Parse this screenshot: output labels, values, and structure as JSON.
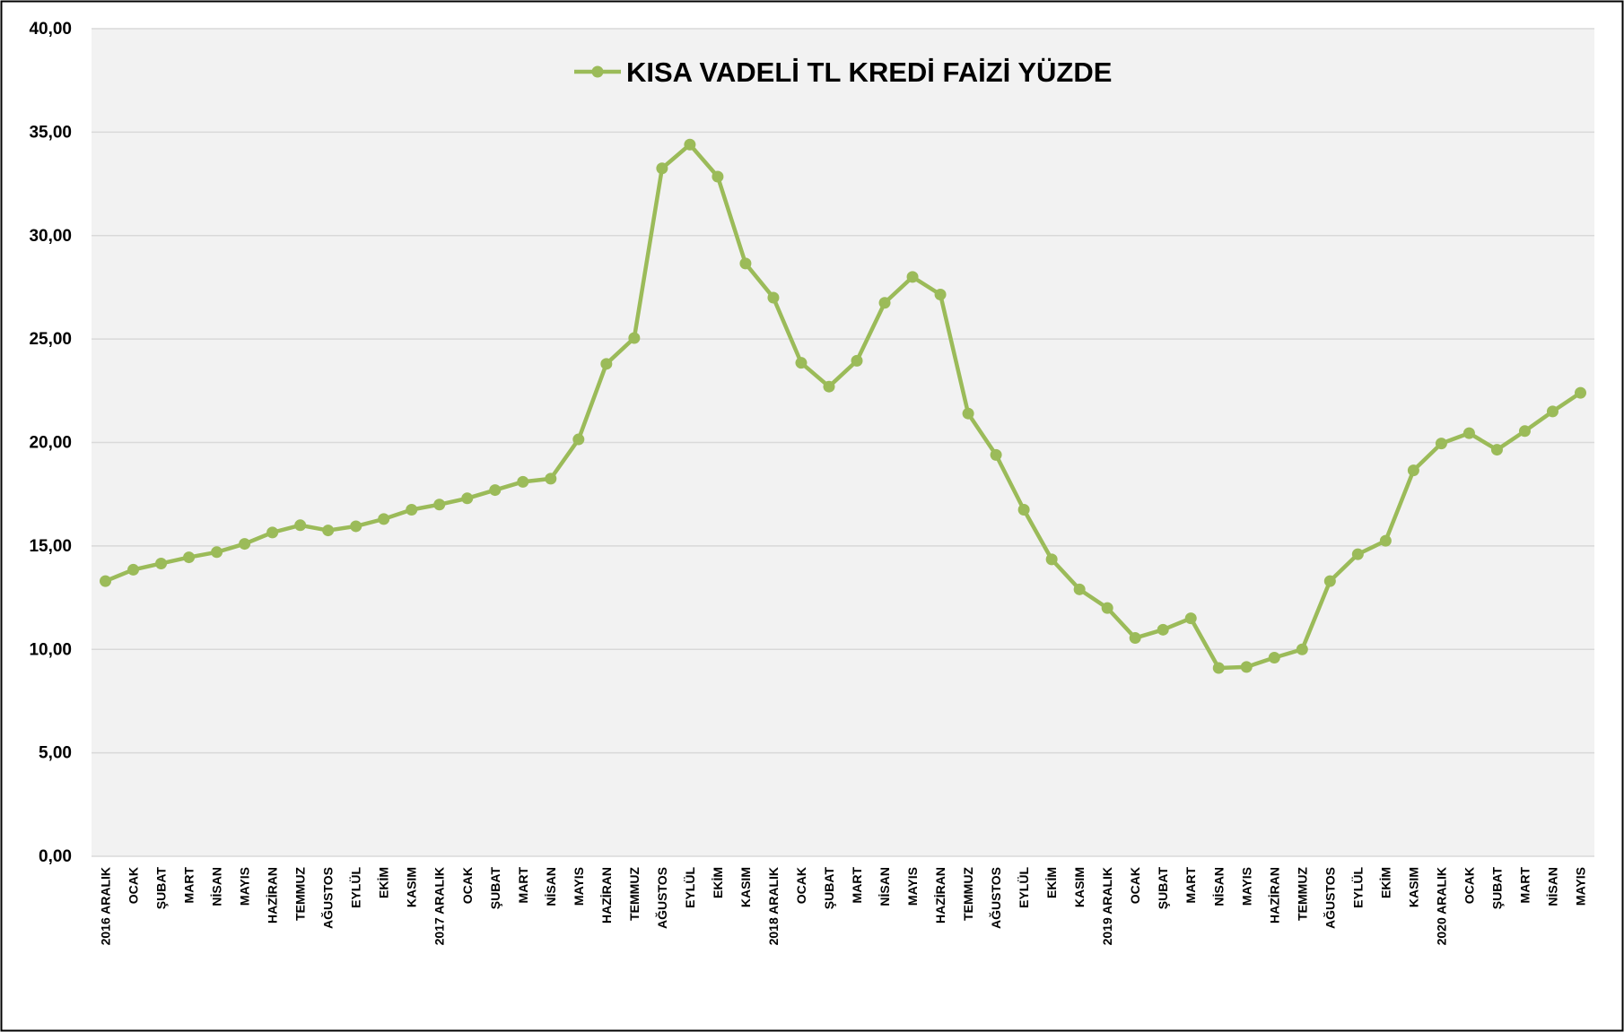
{
  "chart_data": {
    "type": "line",
    "categories": [
      "2016 ARALIK",
      "OCAK",
      "ŞUBAT",
      "MART",
      "NİSAN",
      "MAYIS",
      "HAZİRAN",
      "TEMMUZ",
      "AĞUSTOS",
      "EYLÜL",
      "EKİM",
      "KASIM",
      "2017 ARALIK",
      "OCAK",
      "ŞUBAT",
      "MART",
      "NİSAN",
      "MAYIS",
      "HAZİRAN",
      "TEMMUZ",
      "AĞUSTOS",
      "EYLÜL",
      "EKİM",
      "KASIM",
      "2018 ARALIK",
      "OCAK",
      "ŞUBAT",
      "MART",
      "NİSAN",
      "MAYIS",
      "HAZİRAN",
      "TEMMUZ",
      "AĞUSTOS",
      "EYLÜL",
      "EKİM",
      "KASIM",
      "2019 ARALIK",
      "OCAK",
      "ŞUBAT",
      "MART",
      "NİSAN",
      "MAYIS",
      "HAZİRAN",
      "TEMMUZ",
      "AĞUSTOS",
      "EYLÜL",
      "EKİM",
      "KASIM",
      "2020 ARALIK",
      "OCAK",
      "ŞUBAT",
      "MART",
      "NİSAN",
      "MAYIS"
    ],
    "series": [
      {
        "name": "KISA VADELİ TL KREDİ FAİZİ YÜZDE",
        "color": "#9bbb59",
        "values": [
          13.3,
          13.85,
          14.15,
          14.45,
          14.7,
          15.1,
          15.65,
          16.0,
          15.75,
          15.95,
          16.3,
          16.75,
          17.0,
          17.3,
          17.7,
          18.1,
          18.25,
          20.15,
          23.8,
          25.05,
          33.25,
          34.4,
          32.85,
          28.65,
          27.0,
          23.85,
          22.7,
          23.95,
          26.75,
          28.0,
          27.15,
          21.4,
          19.4,
          16.75,
          14.35,
          12.9,
          12.0,
          10.55,
          10.95,
          11.5,
          9.1,
          9.15,
          9.6,
          10.0,
          13.3,
          14.6,
          15.25,
          18.65,
          19.95,
          20.45,
          19.65,
          20.55,
          21.5,
          22.4
        ]
      }
    ],
    "ylim": [
      0,
      40
    ],
    "yticks": [
      {
        "value": 0,
        "label": "0,00"
      },
      {
        "value": 5,
        "label": "5,00"
      },
      {
        "value": 10,
        "label": "10,00"
      },
      {
        "value": 15,
        "label": "15,00"
      },
      {
        "value": 20,
        "label": "20,00"
      },
      {
        "value": 25,
        "label": "25,00"
      },
      {
        "value": 30,
        "label": "30,00"
      },
      {
        "value": 35,
        "label": "35,00"
      },
      {
        "value": 40,
        "label": "40,00"
      }
    ],
    "grid": true,
    "legend": "top"
  }
}
